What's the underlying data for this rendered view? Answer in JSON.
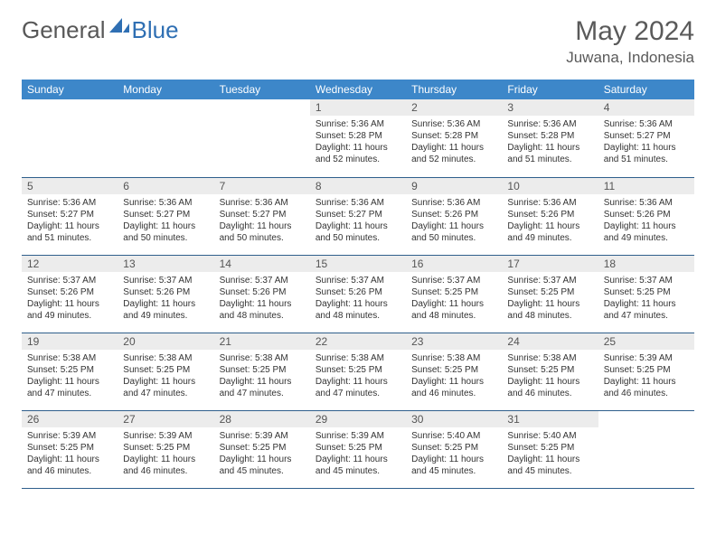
{
  "logo": {
    "text1": "General",
    "text2": "Blue"
  },
  "title": "May 2024",
  "location": "Juwana, Indonesia",
  "colors": {
    "header_bg": "#3d87c9",
    "header_text": "#ffffff",
    "daynum_bg": "#ececec",
    "border": "#2f5f8c",
    "logo_gray": "#585858",
    "logo_blue": "#2f6fb3"
  },
  "weekdays": [
    "Sunday",
    "Monday",
    "Tuesday",
    "Wednesday",
    "Thursday",
    "Friday",
    "Saturday"
  ],
  "weeks": [
    [
      {
        "day": "",
        "sunrise": "",
        "sunset": "",
        "daylight": "",
        "empty": true
      },
      {
        "day": "",
        "sunrise": "",
        "sunset": "",
        "daylight": "",
        "empty": true
      },
      {
        "day": "",
        "sunrise": "",
        "sunset": "",
        "daylight": "",
        "empty": true
      },
      {
        "day": "1",
        "sunrise": "Sunrise: 5:36 AM",
        "sunset": "Sunset: 5:28 PM",
        "daylight": "Daylight: 11 hours and 52 minutes."
      },
      {
        "day": "2",
        "sunrise": "Sunrise: 5:36 AM",
        "sunset": "Sunset: 5:28 PM",
        "daylight": "Daylight: 11 hours and 52 minutes."
      },
      {
        "day": "3",
        "sunrise": "Sunrise: 5:36 AM",
        "sunset": "Sunset: 5:28 PM",
        "daylight": "Daylight: 11 hours and 51 minutes."
      },
      {
        "day": "4",
        "sunrise": "Sunrise: 5:36 AM",
        "sunset": "Sunset: 5:27 PM",
        "daylight": "Daylight: 11 hours and 51 minutes."
      }
    ],
    [
      {
        "day": "5",
        "sunrise": "Sunrise: 5:36 AM",
        "sunset": "Sunset: 5:27 PM",
        "daylight": "Daylight: 11 hours and 51 minutes."
      },
      {
        "day": "6",
        "sunrise": "Sunrise: 5:36 AM",
        "sunset": "Sunset: 5:27 PM",
        "daylight": "Daylight: 11 hours and 50 minutes."
      },
      {
        "day": "7",
        "sunrise": "Sunrise: 5:36 AM",
        "sunset": "Sunset: 5:27 PM",
        "daylight": "Daylight: 11 hours and 50 minutes."
      },
      {
        "day": "8",
        "sunrise": "Sunrise: 5:36 AM",
        "sunset": "Sunset: 5:27 PM",
        "daylight": "Daylight: 11 hours and 50 minutes."
      },
      {
        "day": "9",
        "sunrise": "Sunrise: 5:36 AM",
        "sunset": "Sunset: 5:26 PM",
        "daylight": "Daylight: 11 hours and 50 minutes."
      },
      {
        "day": "10",
        "sunrise": "Sunrise: 5:36 AM",
        "sunset": "Sunset: 5:26 PM",
        "daylight": "Daylight: 11 hours and 49 minutes."
      },
      {
        "day": "11",
        "sunrise": "Sunrise: 5:36 AM",
        "sunset": "Sunset: 5:26 PM",
        "daylight": "Daylight: 11 hours and 49 minutes."
      }
    ],
    [
      {
        "day": "12",
        "sunrise": "Sunrise: 5:37 AM",
        "sunset": "Sunset: 5:26 PM",
        "daylight": "Daylight: 11 hours and 49 minutes."
      },
      {
        "day": "13",
        "sunrise": "Sunrise: 5:37 AM",
        "sunset": "Sunset: 5:26 PM",
        "daylight": "Daylight: 11 hours and 49 minutes."
      },
      {
        "day": "14",
        "sunrise": "Sunrise: 5:37 AM",
        "sunset": "Sunset: 5:26 PM",
        "daylight": "Daylight: 11 hours and 48 minutes."
      },
      {
        "day": "15",
        "sunrise": "Sunrise: 5:37 AM",
        "sunset": "Sunset: 5:26 PM",
        "daylight": "Daylight: 11 hours and 48 minutes."
      },
      {
        "day": "16",
        "sunrise": "Sunrise: 5:37 AM",
        "sunset": "Sunset: 5:25 PM",
        "daylight": "Daylight: 11 hours and 48 minutes."
      },
      {
        "day": "17",
        "sunrise": "Sunrise: 5:37 AM",
        "sunset": "Sunset: 5:25 PM",
        "daylight": "Daylight: 11 hours and 48 minutes."
      },
      {
        "day": "18",
        "sunrise": "Sunrise: 5:37 AM",
        "sunset": "Sunset: 5:25 PM",
        "daylight": "Daylight: 11 hours and 47 minutes."
      }
    ],
    [
      {
        "day": "19",
        "sunrise": "Sunrise: 5:38 AM",
        "sunset": "Sunset: 5:25 PM",
        "daylight": "Daylight: 11 hours and 47 minutes."
      },
      {
        "day": "20",
        "sunrise": "Sunrise: 5:38 AM",
        "sunset": "Sunset: 5:25 PM",
        "daylight": "Daylight: 11 hours and 47 minutes."
      },
      {
        "day": "21",
        "sunrise": "Sunrise: 5:38 AM",
        "sunset": "Sunset: 5:25 PM",
        "daylight": "Daylight: 11 hours and 47 minutes."
      },
      {
        "day": "22",
        "sunrise": "Sunrise: 5:38 AM",
        "sunset": "Sunset: 5:25 PM",
        "daylight": "Daylight: 11 hours and 47 minutes."
      },
      {
        "day": "23",
        "sunrise": "Sunrise: 5:38 AM",
        "sunset": "Sunset: 5:25 PM",
        "daylight": "Daylight: 11 hours and 46 minutes."
      },
      {
        "day": "24",
        "sunrise": "Sunrise: 5:38 AM",
        "sunset": "Sunset: 5:25 PM",
        "daylight": "Daylight: 11 hours and 46 minutes."
      },
      {
        "day": "25",
        "sunrise": "Sunrise: 5:39 AM",
        "sunset": "Sunset: 5:25 PM",
        "daylight": "Daylight: 11 hours and 46 minutes."
      }
    ],
    [
      {
        "day": "26",
        "sunrise": "Sunrise: 5:39 AM",
        "sunset": "Sunset: 5:25 PM",
        "daylight": "Daylight: 11 hours and 46 minutes."
      },
      {
        "day": "27",
        "sunrise": "Sunrise: 5:39 AM",
        "sunset": "Sunset: 5:25 PM",
        "daylight": "Daylight: 11 hours and 46 minutes."
      },
      {
        "day": "28",
        "sunrise": "Sunrise: 5:39 AM",
        "sunset": "Sunset: 5:25 PM",
        "daylight": "Daylight: 11 hours and 45 minutes."
      },
      {
        "day": "29",
        "sunrise": "Sunrise: 5:39 AM",
        "sunset": "Sunset: 5:25 PM",
        "daylight": "Daylight: 11 hours and 45 minutes."
      },
      {
        "day": "30",
        "sunrise": "Sunrise: 5:40 AM",
        "sunset": "Sunset: 5:25 PM",
        "daylight": "Daylight: 11 hours and 45 minutes."
      },
      {
        "day": "31",
        "sunrise": "Sunrise: 5:40 AM",
        "sunset": "Sunset: 5:25 PM",
        "daylight": "Daylight: 11 hours and 45 minutes."
      },
      {
        "day": "",
        "sunrise": "",
        "sunset": "",
        "daylight": "",
        "empty": true
      }
    ]
  ]
}
